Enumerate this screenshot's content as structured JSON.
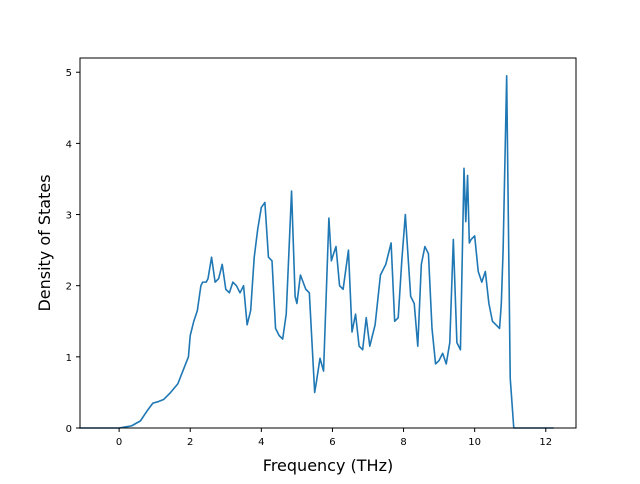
{
  "chart_data": {
    "type": "line",
    "title": "",
    "xlabel": "Frequency (THz)",
    "ylabel": "Density of States",
    "xlim": [
      -1.1,
      12.85
    ],
    "ylim": [
      0,
      5.2
    ],
    "xticks": [
      0,
      2,
      4,
      6,
      8,
      10,
      12
    ],
    "yticks": [
      0,
      1,
      2,
      3,
      4,
      5
    ],
    "grid": false,
    "legend": "none",
    "series": [
      {
        "color": "#1f77b4",
        "x": [
          -1.1,
          0.0,
          0.35,
          0.6,
          0.8,
          0.95,
          1.1,
          1.25,
          1.45,
          1.65,
          1.95,
          2.0,
          2.1,
          2.2,
          2.3,
          2.35,
          2.45,
          2.5,
          2.6,
          2.7,
          2.8,
          2.9,
          3.0,
          3.1,
          3.2,
          3.3,
          3.4,
          3.5,
          3.6,
          3.7,
          3.8,
          3.9,
          4.0,
          4.1,
          4.2,
          4.3,
          4.4,
          4.5,
          4.6,
          4.7,
          4.85,
          4.95,
          5.0,
          5.1,
          5.25,
          5.35,
          5.5,
          5.55,
          5.65,
          5.75,
          5.9,
          5.97,
          6.0,
          6.1,
          6.2,
          6.3,
          6.45,
          6.55,
          6.65,
          6.75,
          6.85,
          6.95,
          7.05,
          7.2,
          7.35,
          7.5,
          7.65,
          7.75,
          7.85,
          7.95,
          8.05,
          8.2,
          8.3,
          8.4,
          8.5,
          8.6,
          8.7,
          8.8,
          8.9,
          9.0,
          9.1,
          9.2,
          9.3,
          9.4,
          9.5,
          9.6,
          9.7,
          9.75,
          9.8,
          9.85,
          9.9,
          10.0,
          10.1,
          10.2,
          10.3,
          10.4,
          10.5,
          10.6,
          10.7,
          10.75,
          10.8,
          10.9,
          11.0,
          11.1,
          11.2,
          12.2
        ],
        "y": [
          0,
          0,
          0.03,
          0.1,
          0.25,
          0.35,
          0.37,
          0.4,
          0.5,
          0.62,
          1.0,
          1.3,
          1.5,
          1.65,
          2.0,
          2.05,
          2.05,
          2.1,
          2.4,
          2.05,
          2.1,
          2.3,
          1.95,
          1.9,
          2.05,
          2.0,
          1.9,
          2.0,
          1.45,
          1.65,
          2.4,
          2.8,
          3.1,
          3.17,
          2.4,
          2.35,
          1.4,
          1.3,
          1.25,
          1.6,
          3.33,
          1.85,
          1.75,
          2.15,
          1.95,
          1.9,
          0.5,
          0.65,
          0.98,
          0.8,
          2.95,
          2.35,
          2.4,
          2.55,
          2.0,
          1.95,
          2.5,
          1.35,
          1.6,
          1.15,
          1.1,
          1.55,
          1.15,
          1.45,
          2.15,
          2.3,
          2.6,
          1.5,
          1.55,
          2.35,
          3.0,
          1.85,
          1.75,
          1.15,
          2.3,
          2.55,
          2.45,
          1.4,
          0.9,
          0.95,
          1.05,
          0.9,
          1.2,
          2.65,
          1.2,
          1.1,
          3.65,
          2.9,
          3.55,
          2.6,
          2.65,
          2.7,
          2.2,
          2.05,
          2.2,
          1.75,
          1.5,
          1.45,
          1.4,
          1.75,
          2.5,
          4.95,
          0.7,
          0,
          0,
          0
        ]
      }
    ]
  }
}
